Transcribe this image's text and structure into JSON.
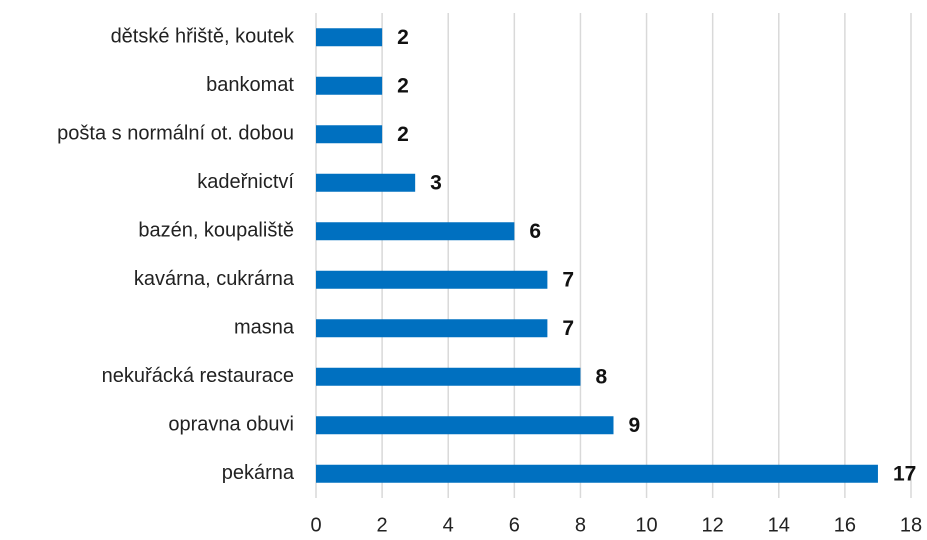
{
  "chart_data": {
    "type": "hbar",
    "categories": [
      "dětské hřiště, koutek",
      "bankomat",
      "pošta s normální ot. dobou",
      "kadeřnictví",
      "bazén, koupaliště",
      "kavárna, cukrárna",
      "masna",
      "nekuřácká restaurace",
      "opravna obuvi",
      "pekárna"
    ],
    "values": [
      2,
      2,
      2,
      3,
      6,
      7,
      7,
      8,
      9,
      17
    ],
    "color": "#0070c0",
    "xlim": [
      0,
      18
    ],
    "xticks": [
      0,
      2,
      4,
      6,
      8,
      10,
      12,
      14,
      16,
      18
    ],
    "grid": true
  }
}
